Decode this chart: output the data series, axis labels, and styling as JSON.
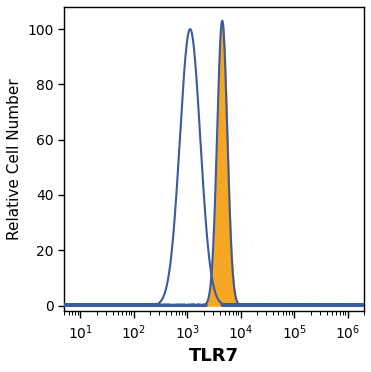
{
  "ylabel": "Relative Cell Number",
  "xlabel": "TLR7",
  "xlim": [
    5,
    2000000
  ],
  "ylim": [
    -2,
    108
  ],
  "yticks": [
    0,
    20,
    40,
    60,
    80,
    100
  ],
  "xticks_major": [
    10,
    100,
    1000,
    10000,
    100000,
    1000000
  ],
  "xtick_labels": [
    "$10^1$",
    "$10^2$",
    "$10^3$",
    "$10^4$",
    "$10^5$",
    "$10^6$"
  ],
  "blue_peak_log_mean": 3.05,
  "blue_peak_log_std": 0.19,
  "blue_peak_height": 100,
  "orange_peak_log_mean": 3.65,
  "orange_peak_log_std": 0.095,
  "orange_peak_height": 103,
  "blue_color": "#3A5BA0",
  "orange_color": "#F5A623",
  "background_color": "#ffffff",
  "xlabel_fontsize": 13,
  "ylabel_fontsize": 11,
  "tick_fontsize": 10
}
